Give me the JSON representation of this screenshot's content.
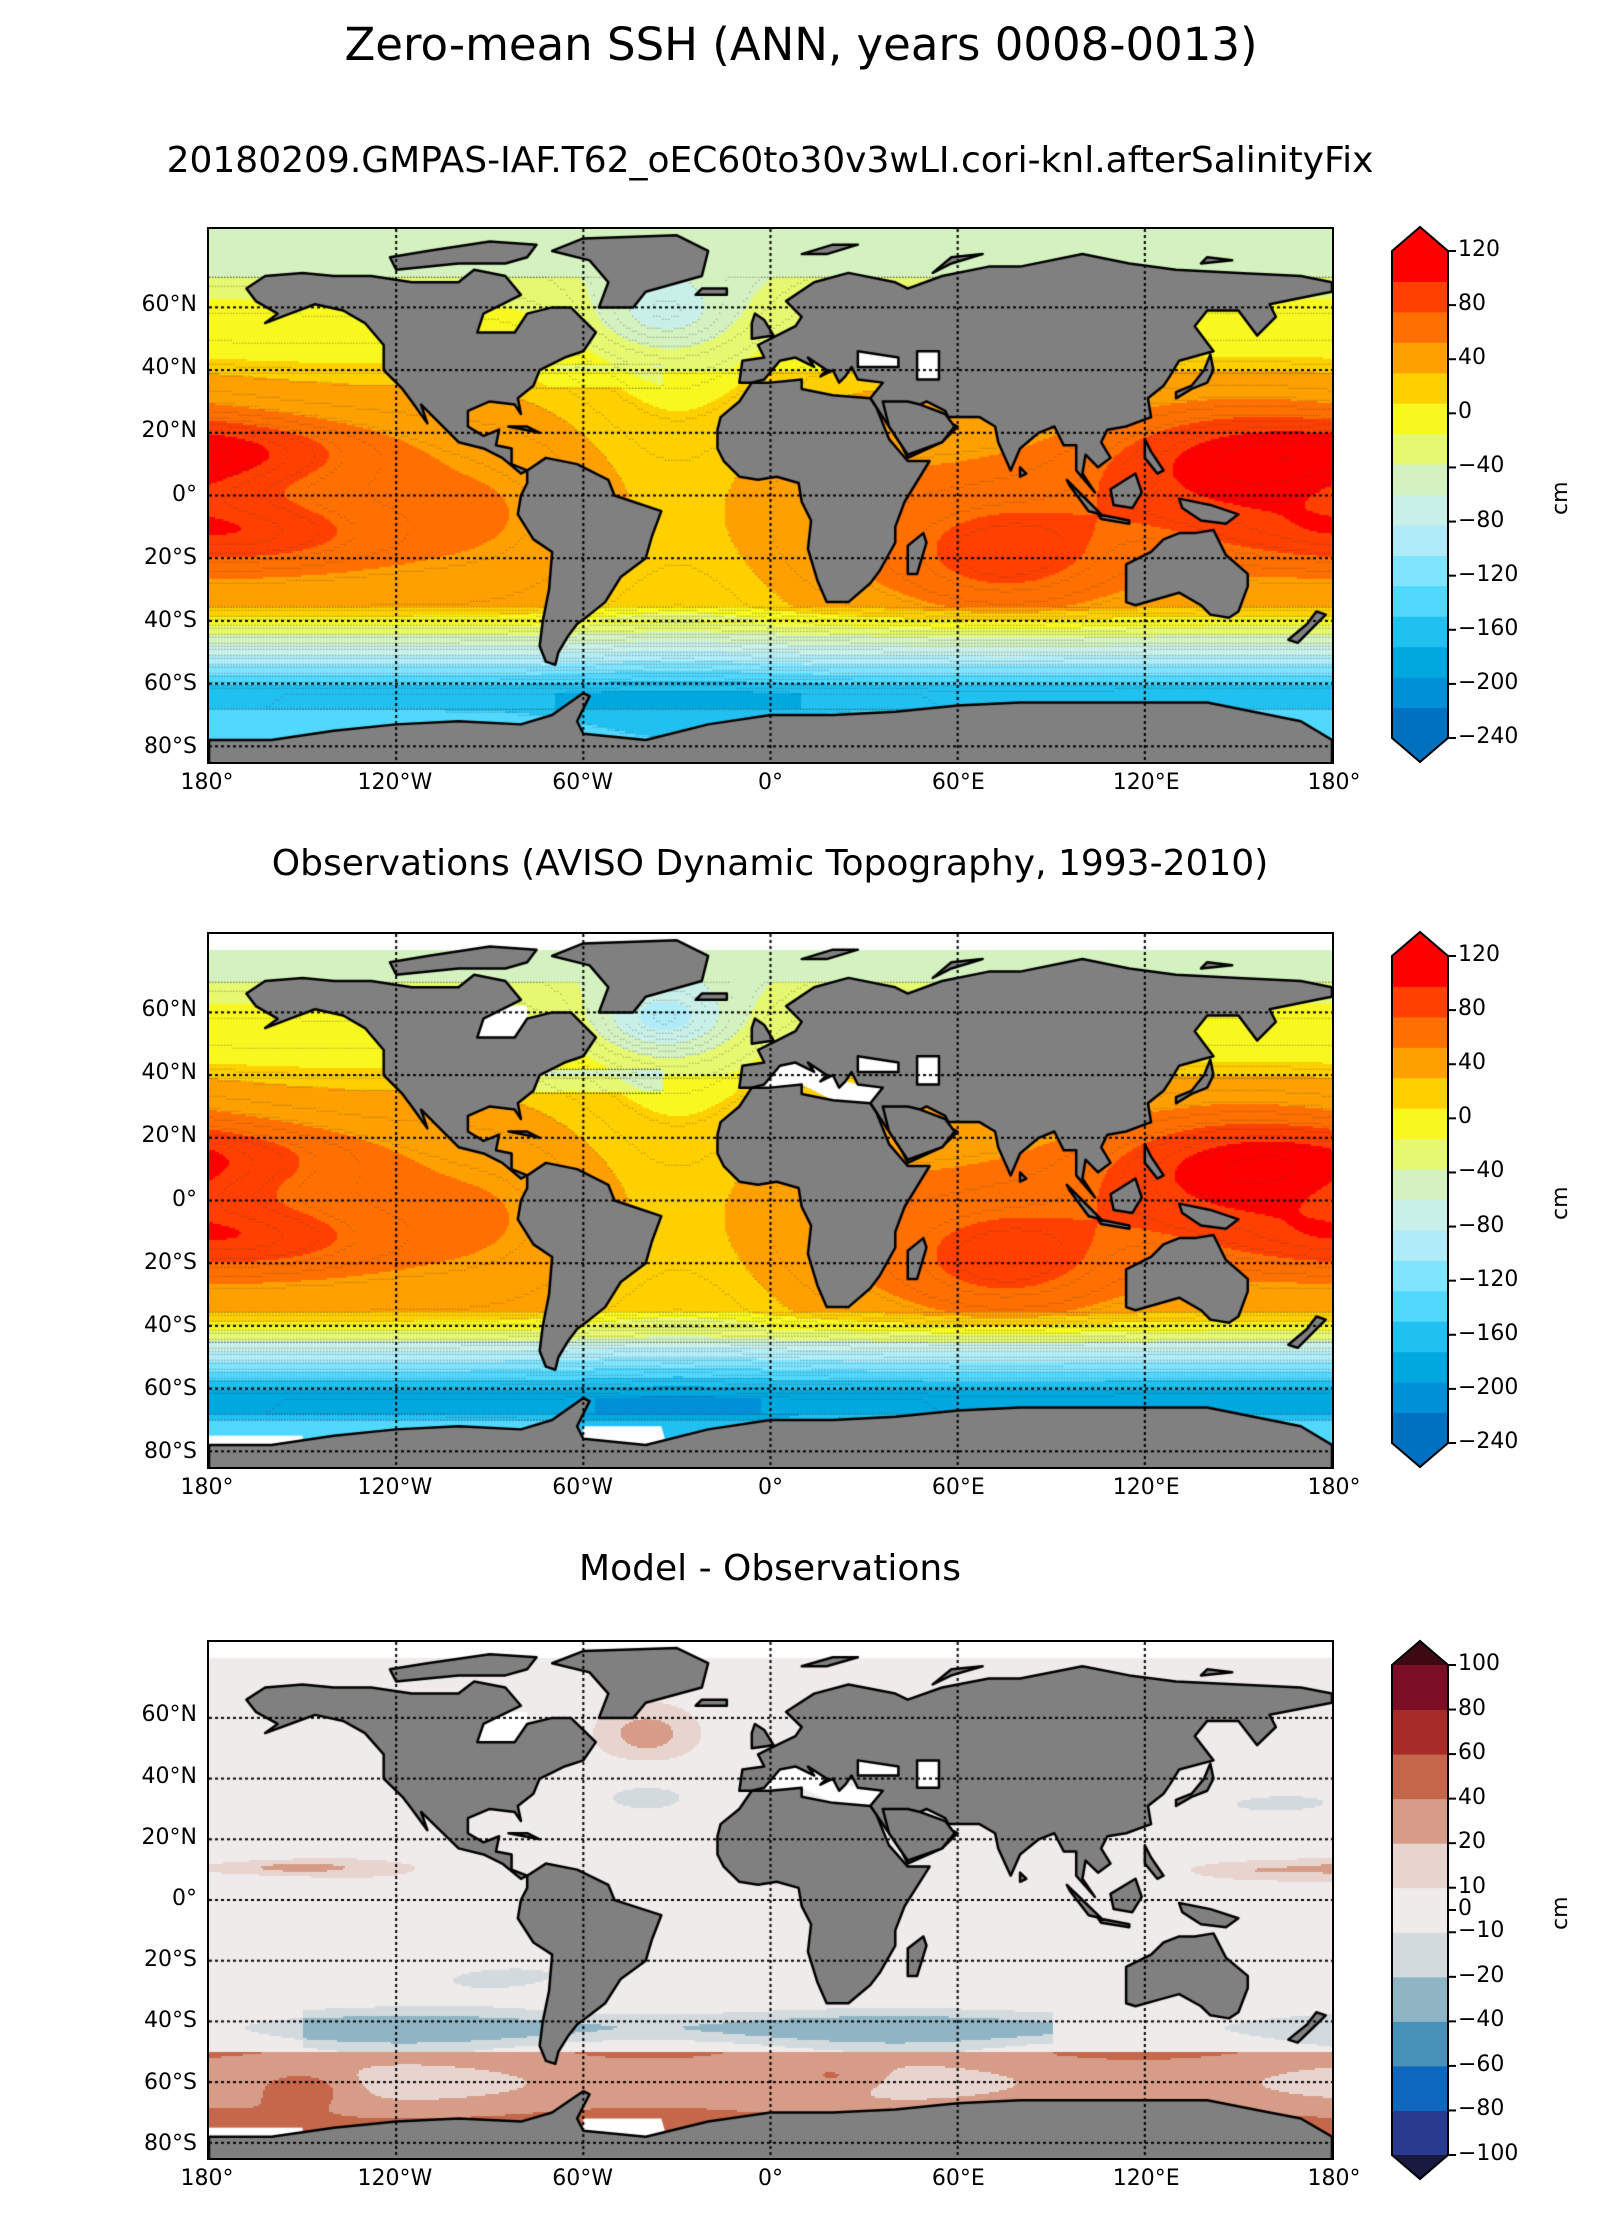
{
  "chart_data": [
    {
      "type": "heatmap",
      "suptitle": "Zero-mean SSH (ANN, years 0008-0013)",
      "title": "20180209.GMPAS-IAF.T62_oEC60to30v3wLI.cori-knl.afterSalinityFix",
      "field": "model",
      "xlabel": "",
      "ylabel": "",
      "x_ticks": [
        "180°",
        "120°W",
        "60°W",
        "0°",
        "60°E",
        "120°E",
        "180°"
      ],
      "x_tick_values": [
        -180,
        -120,
        -60,
        0,
        60,
        120,
        180
      ],
      "y_ticks": [
        "60°N",
        "40°N",
        "20°N",
        "0°",
        "20°S",
        "40°S",
        "60°S",
        "80°S"
      ],
      "y_tick_values": [
        60,
        40,
        20,
        0,
        -20,
        -40,
        -60,
        -80
      ],
      "xlim": [
        -180,
        180
      ],
      "ylim": [
        -85,
        85
      ],
      "grid": true,
      "colorbar": {
        "label": "cm",
        "ticks": [
          "120",
          "80",
          "40",
          "0",
          "−40",
          "−80",
          "−120",
          "−160",
          "−200",
          "−240"
        ],
        "tick_values": [
          120,
          80,
          40,
          0,
          -40,
          -80,
          -120,
          -160,
          -200,
          -240
        ],
        "range": [
          -240,
          120
        ],
        "extend": "both",
        "colors": [
          "#0070c0",
          "#0090d8",
          "#00a8e0",
          "#20c0f0",
          "#50d8ff",
          "#80e4ff",
          "#b0ecf8",
          "#c8f0e8",
          "#d4f2c0",
          "#e6f870",
          "#f8f820",
          "#ffd000",
          "#ffa000",
          "#ff7000",
          "#ff4000",
          "#ff0000"
        ]
      },
      "features": {
        "western_pacific_max_cm": 110,
        "southern_ocean_min_cm": -170
      }
    },
    {
      "type": "heatmap",
      "title": "Observations (AVISO Dynamic Topography, 1993-2010)",
      "field": "obs",
      "x_ticks": [
        "180°",
        "120°W",
        "60°W",
        "0°",
        "60°E",
        "120°E",
        "180°"
      ],
      "x_tick_values": [
        -180,
        -120,
        -60,
        0,
        60,
        120,
        180
      ],
      "y_ticks": [
        "60°N",
        "40°N",
        "20°N",
        "0°",
        "20°S",
        "40°S",
        "60°S",
        "80°S"
      ],
      "y_tick_values": [
        60,
        40,
        20,
        0,
        -20,
        -40,
        -60,
        -80
      ],
      "xlim": [
        -180,
        180
      ],
      "ylim": [
        -85,
        85
      ],
      "grid": true,
      "colorbar": {
        "label": "cm",
        "ticks": [
          "120",
          "80",
          "40",
          "0",
          "−40",
          "−80",
          "−120",
          "−160",
          "−200",
          "−240"
        ],
        "tick_values": [
          120,
          80,
          40,
          0,
          -40,
          -80,
          -120,
          -160,
          -200,
          -240
        ],
        "range": [
          -240,
          120
        ],
        "extend": "both",
        "colors": [
          "#0070c0",
          "#0090d8",
          "#00a8e0",
          "#20c0f0",
          "#50d8ff",
          "#80e4ff",
          "#b0ecf8",
          "#c8f0e8",
          "#d4f2c0",
          "#e6f870",
          "#f8f820",
          "#ffd000",
          "#ffa000",
          "#ff7000",
          "#ff4000",
          "#ff0000"
        ]
      }
    },
    {
      "type": "heatmap",
      "title": "Model - Observations",
      "field": "diff",
      "x_ticks": [
        "180°",
        "120°W",
        "60°W",
        "0°",
        "60°E",
        "120°E",
        "180°"
      ],
      "x_tick_values": [
        -180,
        -120,
        -60,
        0,
        60,
        120,
        180
      ],
      "y_ticks": [
        "60°N",
        "40°N",
        "20°N",
        "0°",
        "20°S",
        "40°S",
        "60°S",
        "80°S"
      ],
      "y_tick_values": [
        60,
        40,
        20,
        0,
        -20,
        -40,
        -60,
        -80
      ],
      "xlim": [
        -180,
        180
      ],
      "ylim": [
        -85,
        85
      ],
      "grid": true,
      "colorbar": {
        "label": "cm",
        "ticks": [
          "100",
          "80",
          "60",
          "40",
          "20",
          "10",
          "0",
          "−10",
          "−20",
          "−40",
          "−60",
          "−80",
          "−100"
        ],
        "tick_values": [
          100,
          80,
          60,
          40,
          20,
          10,
          0,
          -10,
          -20,
          -40,
          -60,
          -80,
          -100
        ],
        "levels": [
          -100,
          -80,
          -60,
          -40,
          -20,
          -10,
          10,
          20,
          40,
          60,
          80,
          100
        ],
        "extend": "both",
        "colors": [
          "#2a3b8f",
          "#0f68c0",
          "#4891b9",
          "#8fb5c5",
          "#d3dade",
          "#f0ebeb",
          "#e8d4cf",
          "#d69c88",
          "#c5674b",
          "#a72b26",
          "#7c0d27"
        ],
        "under_color": "#1a1a40",
        "over_color": "#3d0a14"
      },
      "features": {
        "southern_ocean_bias": "positive (40-80 cm)",
        "max_bias_location": "60°S, 150°W"
      }
    }
  ]
}
